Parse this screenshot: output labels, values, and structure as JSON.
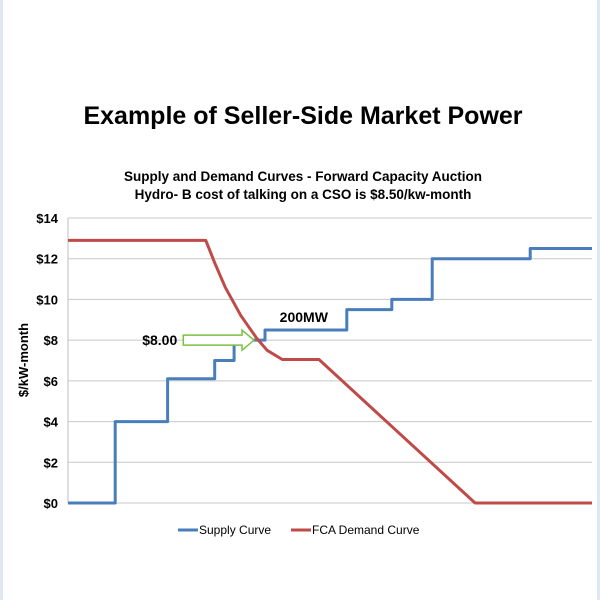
{
  "chart_data": {
    "type": "line",
    "title": "Example of Seller-Side Market Power",
    "subtitle": [
      "Supply and Demand Curves - Forward Capacity Auction",
      "Hydro- B cost of talking on a CSO is $8.50/kw-month"
    ],
    "xlabel": "",
    "ylabel": "$/kW-month",
    "xlim": [
      0,
      100
    ],
    "ylim": [
      0,
      14
    ],
    "yticks": [
      0,
      2,
      4,
      6,
      8,
      10,
      12,
      14
    ],
    "ytick_labels": [
      "$0",
      "$2",
      "$4",
      "$6",
      "$8",
      "$10",
      "$12",
      "$14"
    ],
    "grid": true,
    "legend_position": "bottom",
    "series": [
      {
        "name": "Supply Curve",
        "color": "#4a7ebb",
        "points": [
          [
            0,
            0
          ],
          [
            9,
            0
          ],
          [
            9,
            4
          ],
          [
            19,
            4
          ],
          [
            19,
            6.1
          ],
          [
            28,
            6.1
          ],
          [
            28,
            7
          ],
          [
            31.7,
            7
          ],
          [
            31.7,
            8
          ],
          [
            37.6,
            8
          ],
          [
            37.6,
            8.5
          ],
          [
            53.2,
            8.5
          ],
          [
            53.2,
            9.5
          ],
          [
            61.8,
            9.5
          ],
          [
            61.8,
            10
          ],
          [
            69.5,
            10
          ],
          [
            69.5,
            12
          ],
          [
            88.2,
            12
          ],
          [
            88.2,
            12.5
          ],
          [
            100,
            12.5
          ]
        ]
      },
      {
        "name": "FCA Demand Curve",
        "color": "#be4b48",
        "points": [
          [
            0,
            12.9
          ],
          [
            26.3,
            12.9
          ],
          [
            28,
            11.8
          ],
          [
            30,
            10.6
          ],
          [
            33,
            9.2
          ],
          [
            36,
            8.1
          ],
          [
            38,
            7.5
          ],
          [
            40.9,
            7.05
          ],
          [
            47.9,
            7.05
          ],
          [
            77.7,
            0
          ],
          [
            100,
            0
          ]
        ]
      }
    ],
    "annotations": [
      {
        "text": "$8.00",
        "type": "arrow",
        "from": [
          22,
          8
        ],
        "to": [
          35.5,
          8
        ],
        "color": "#7ac143"
      },
      {
        "text": "200MW",
        "at": [
          45,
          8.9
        ]
      }
    ]
  }
}
